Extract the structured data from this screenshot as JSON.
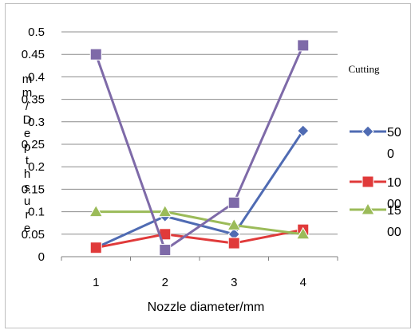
{
  "chart_data": {
    "type": "line",
    "title": "",
    "xlabel": "Nozzle diameter/mm",
    "ylabel": "m m / D e p t h s u r e",
    "x": [
      1,
      2,
      3,
      4
    ],
    "x_ticks": [
      "1",
      "2",
      "3",
      "4"
    ],
    "ylim": [
      0,
      0.5
    ],
    "y_ticks": [
      "0",
      "0.05",
      "0.1",
      "0.15",
      "0.2",
      "0.25",
      "0.3",
      "0.35",
      "0.4",
      "0.45",
      "0.5"
    ],
    "grid": "horizontal",
    "legend": {
      "title": "Cutting",
      "position": "right",
      "entries": [
        {
          "line1": "50",
          "line2": "0"
        },
        {
          "line1": "10",
          "line2": "00"
        },
        {
          "line1": "15",
          "line2": "00"
        }
      ]
    },
    "series": [
      {
        "name": "500",
        "values": [
          0.02,
          0.09,
          0.05,
          0.28
        ],
        "color": "#4f6bb3",
        "marker": "diamond"
      },
      {
        "name": "1000",
        "values": [
          0.02,
          0.05,
          0.03,
          0.06
        ],
        "color": "#e03a3a",
        "marker": "square"
      },
      {
        "name": "1500",
        "values": [
          0.1,
          0.1,
          0.07,
          0.05
        ],
        "color": "#9bbb59",
        "marker": "triangle"
      },
      {
        "values": [
          0.45,
          0.015,
          0.12,
          0.47
        ],
        "color": "#7e6aa8",
        "marker": "square"
      }
    ]
  }
}
